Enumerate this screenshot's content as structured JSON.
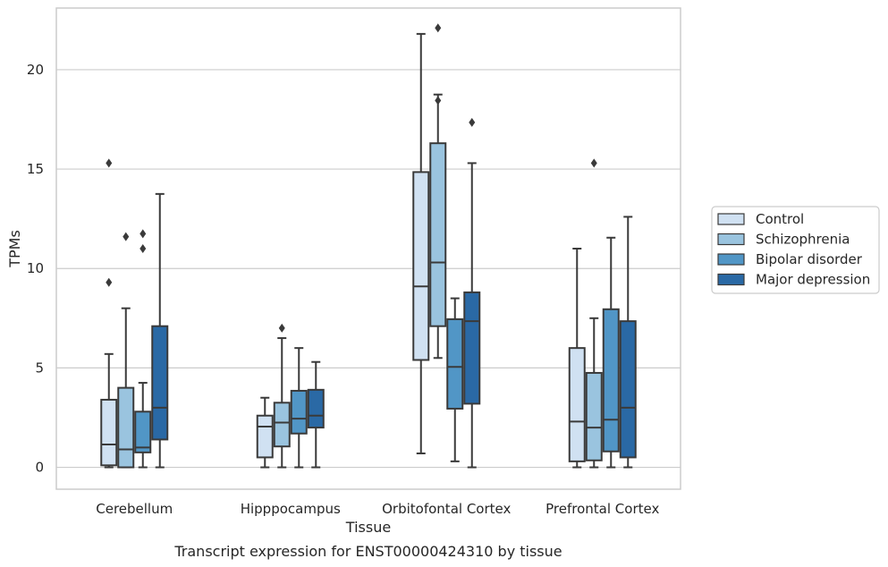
{
  "chart_data": {
    "type": "box",
    "title": "",
    "caption": "Transcript expression for ENST00000424310 by tissue",
    "xlabel": "Tissue",
    "ylabel": "TPMs",
    "ylim": [
      -1.1,
      23.1
    ],
    "yticks": [
      0,
      5,
      10,
      15,
      20
    ],
    "ytick_labels": [
      "0",
      "5",
      "10",
      "15",
      "20"
    ],
    "grid": "horizontal",
    "legend_position": "right",
    "categories": [
      "Cerebellum",
      "Hipppocampus",
      "Orbitofontal Cortex",
      "Prefrontal Cortex"
    ],
    "series": [
      {
        "name": "Control",
        "color": "#d0e1f2",
        "boxes": [
          {
            "whisker_low": 0.0,
            "q1": 0.1,
            "median": 1.15,
            "q3": 3.4,
            "whisker_high": 5.7,
            "outliers": [
              15.3,
              9.3
            ]
          },
          {
            "whisker_low": 0.0,
            "q1": 0.5,
            "median": 2.05,
            "q3": 2.6,
            "whisker_high": 3.5,
            "outliers": []
          },
          {
            "whisker_low": 0.7,
            "q1": 5.4,
            "median": 9.1,
            "q3": 14.85,
            "whisker_high": 21.8,
            "outliers": []
          },
          {
            "whisker_low": 0.0,
            "q1": 0.3,
            "median": 2.3,
            "q3": 6.0,
            "whisker_high": 11.0,
            "outliers": []
          }
        ]
      },
      {
        "name": "Schizophrenia",
        "color": "#9ac4df",
        "boxes": [
          {
            "whisker_low": 0.0,
            "q1": 0.0,
            "median": 0.9,
            "q3": 4.0,
            "whisker_high": 8.0,
            "outliers": [
              11.6
            ]
          },
          {
            "whisker_low": 0.0,
            "q1": 1.05,
            "median": 2.25,
            "q3": 3.25,
            "whisker_high": 6.5,
            "outliers": [
              7.0
            ]
          },
          {
            "whisker_low": 5.5,
            "q1": 7.1,
            "median": 10.3,
            "q3": 16.3,
            "whisker_high": 18.75,
            "outliers": [
              22.1,
              18.45
            ]
          },
          {
            "whisker_low": 0.0,
            "q1": 0.35,
            "median": 2.0,
            "q3": 4.75,
            "whisker_high": 7.5,
            "outliers": [
              15.3
            ]
          }
        ]
      },
      {
        "name": "Bipolar disorder",
        "color": "#5196c6",
        "boxes": [
          {
            "whisker_low": 0.0,
            "q1": 0.75,
            "median": 1.0,
            "q3": 2.8,
            "whisker_high": 4.25,
            "outliers": [
              11.75,
              11.0
            ]
          },
          {
            "whisker_low": 0.0,
            "q1": 1.7,
            "median": 2.45,
            "q3": 3.85,
            "whisker_high": 6.0,
            "outliers": []
          },
          {
            "whisker_low": 0.3,
            "q1": 2.95,
            "median": 5.05,
            "q3": 7.45,
            "whisker_high": 8.5,
            "outliers": []
          },
          {
            "whisker_low": 0.0,
            "q1": 0.8,
            "median": 2.4,
            "q3": 7.95,
            "whisker_high": 11.55,
            "outliers": []
          }
        ]
      },
      {
        "name": "Major depression",
        "color": "#2a69a5",
        "boxes": [
          {
            "whisker_low": 0.0,
            "q1": 1.4,
            "median": 3.0,
            "q3": 7.1,
            "whisker_high": 13.75,
            "outliers": []
          },
          {
            "whisker_low": 0.0,
            "q1": 2.0,
            "median": 2.6,
            "q3": 3.9,
            "whisker_high": 5.3,
            "outliers": []
          },
          {
            "whisker_low": 0.0,
            "q1": 3.2,
            "median": 7.35,
            "q3": 8.8,
            "whisker_high": 15.3,
            "outliers": [
              17.35
            ]
          },
          {
            "whisker_low": 0.0,
            "q1": 0.5,
            "median": 3.0,
            "q3": 7.35,
            "whisker_high": 12.6,
            "outliers": []
          }
        ]
      }
    ],
    "colors": {
      "grid": "#cccccc",
      "frame": "#cccccc",
      "box_edge": "#3a3a3a"
    }
  }
}
